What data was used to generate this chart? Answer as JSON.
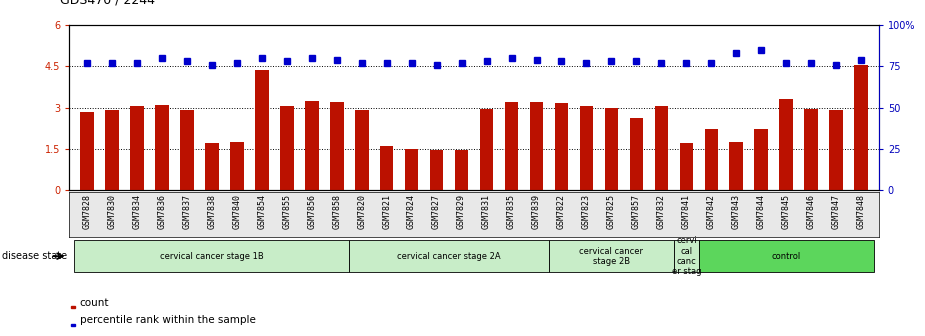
{
  "title": "GDS470 / 2244",
  "samples": [
    "GSM7828",
    "GSM7830",
    "GSM7834",
    "GSM7836",
    "GSM7837",
    "GSM7838",
    "GSM7840",
    "GSM7854",
    "GSM7855",
    "GSM7856",
    "GSM7858",
    "GSM7820",
    "GSM7821",
    "GSM7824",
    "GSM7827",
    "GSM7829",
    "GSM7831",
    "GSM7835",
    "GSM7839",
    "GSM7822",
    "GSM7823",
    "GSM7825",
    "GSM7857",
    "GSM7832",
    "GSM7841",
    "GSM7842",
    "GSM7843",
    "GSM7844",
    "GSM7845",
    "GSM7846",
    "GSM7847",
    "GSM7848"
  ],
  "bar_values": [
    2.85,
    2.9,
    3.05,
    3.1,
    2.9,
    1.7,
    1.75,
    4.35,
    3.05,
    3.25,
    3.2,
    2.9,
    1.6,
    1.5,
    1.45,
    1.45,
    2.95,
    3.2,
    3.2,
    3.15,
    3.05,
    3.0,
    2.6,
    3.05,
    1.7,
    2.2,
    1.75,
    2.2,
    3.3,
    2.95,
    2.9,
    4.55
  ],
  "dot_values_pct": [
    77,
    77,
    77,
    80,
    78,
    76,
    77,
    80,
    78,
    80,
    79,
    77,
    77,
    77,
    76,
    77,
    78,
    80,
    79,
    78,
    77,
    78,
    78,
    77,
    77,
    77,
    83,
    85,
    77,
    77,
    76,
    79
  ],
  "groups": [
    {
      "label": "cervical cancer stage 1B",
      "start": 0,
      "end": 10,
      "color": "#c8edc8"
    },
    {
      "label": "cervical cancer stage 2A",
      "start": 11,
      "end": 18,
      "color": "#c8edc8"
    },
    {
      "label": "cervical cancer\nstage 2B",
      "start": 19,
      "end": 23,
      "color": "#c8edc8"
    },
    {
      "label": "cervi\ncal\ncanc\ner stag",
      "start": 24,
      "end": 24,
      "color": "#c8edc8"
    },
    {
      "label": "control",
      "start": 25,
      "end": 31,
      "color": "#5cd65c"
    }
  ],
  "ylim_left": [
    0,
    6
  ],
  "ylim_right": [
    0,
    100
  ],
  "yticks_left": [
    0,
    1.5,
    3.0,
    4.5,
    6.0
  ],
  "ytick_labels_left": [
    "0",
    "1.5",
    "3",
    "4.5",
    "6"
  ],
  "yticks_right": [
    0,
    25,
    50,
    75,
    100
  ],
  "ytick_labels_right": [
    "0",
    "25",
    "50",
    "75",
    "100%"
  ],
  "hlines": [
    1.5,
    3.0,
    4.5
  ],
  "bar_color": "#bb1100",
  "dot_color": "#0000cc",
  "left_tick_color": "#cc2200",
  "right_tick_color": "#0000bb",
  "disease_state_label": "disease state",
  "legend_count_label": "count",
  "legend_percentile_label": "percentile rank within the sample",
  "title_fontsize": 9,
  "xlabel_fontsize": 6,
  "tick_fontsize": 7
}
